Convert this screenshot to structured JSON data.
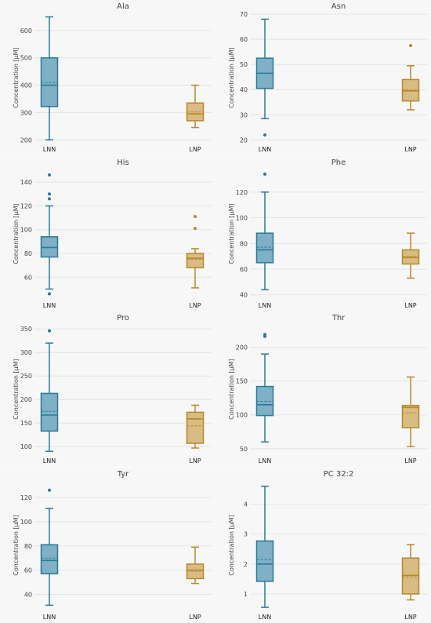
{
  "colors": {
    "LNN": "#2b7a97",
    "LNP": "#b8882c",
    "LNN_fill": "#7fb0c5",
    "LNP_fill": "#d9bb84"
  },
  "chart_data": [
    {
      "type": "box",
      "title": "Ala",
      "ylabel": "Concentration [µM]",
      "yticks": [
        200,
        300,
        400,
        500,
        600
      ],
      "ylim": [
        195,
        660
      ],
      "categories": [
        "LNN",
        "LNP"
      ],
      "boxes": [
        {
          "name": "LNN",
          "min": 200,
          "q1": 322,
          "median": 400,
          "mean": 410,
          "q3": 500,
          "max": 650,
          "outliers": []
        },
        {
          "name": "LNP",
          "min": 245,
          "q1": 270,
          "median": 295,
          "mean": 302,
          "q3": 335,
          "max": 400,
          "outliers": []
        }
      ]
    },
    {
      "type": "box",
      "title": "Asn",
      "ylabel": "Concentration [µM]",
      "yticks": [
        20,
        30,
        40,
        50,
        60,
        70
      ],
      "ylim": [
        19.5,
        70
      ],
      "categories": [
        "LNN",
        "LNP"
      ],
      "boxes": [
        {
          "name": "LNN",
          "min": 28.5,
          "q1": 40.5,
          "median": 46.5,
          "mean": 46.5,
          "q3": 52.5,
          "max": 68,
          "outliers": [
            22
          ]
        },
        {
          "name": "LNP",
          "min": 32,
          "q1": 35.5,
          "median": 39.5,
          "mean": 40,
          "q3": 44,
          "max": 49.5,
          "outliers": [
            57.5
          ]
        }
      ]
    },
    {
      "type": "box",
      "title": "His",
      "ylabel": "Concentration [µM]",
      "yticks": [
        60,
        80,
        100,
        120,
        140
      ],
      "ylim": [
        43,
        150
      ],
      "categories": [
        "LNN",
        "LNP"
      ],
      "boxes": [
        {
          "name": "LNN",
          "min": 50,
          "q1": 77,
          "median": 85,
          "mean": 85,
          "q3": 94,
          "max": 120,
          "outliers": [
            46,
            126,
            130,
            146
          ]
        },
        {
          "name": "LNP",
          "min": 51,
          "q1": 68,
          "median": 76,
          "mean": 75,
          "q3": 80,
          "max": 84,
          "outliers": [
            101,
            111
          ]
        }
      ]
    },
    {
      "type": "box",
      "title": "Phe",
      "ylabel": "Concentration [µM]",
      "yticks": [
        40,
        60,
        80,
        100,
        120
      ],
      "ylim": [
        38,
        137
      ],
      "categories": [
        "LNN",
        "LNP"
      ],
      "boxes": [
        {
          "name": "LNN",
          "min": 44,
          "q1": 65,
          "median": 75,
          "mean": 77,
          "q3": 88,
          "max": 120,
          "outliers": [
            134
          ]
        },
        {
          "name": "LNP",
          "min": 53,
          "q1": 64,
          "median": 69,
          "mean": 70,
          "q3": 75,
          "max": 88,
          "outliers": []
        }
      ]
    },
    {
      "type": "box",
      "title": "Pro",
      "ylabel": "Concentration [µM]",
      "yticks": [
        100,
        150,
        200,
        250,
        300,
        350
      ],
      "ylim": [
        87,
        357
      ],
      "categories": [
        "LNN",
        "LNP"
      ],
      "boxes": [
        {
          "name": "LNN",
          "min": 90,
          "q1": 133,
          "median": 167,
          "mean": 175,
          "q3": 213,
          "max": 320,
          "outliers": [
            346
          ]
        },
        {
          "name": "LNP",
          "min": 97,
          "q1": 107,
          "median": 159,
          "mean": 144,
          "q3": 173,
          "max": 188,
          "outliers": []
        }
      ]
    },
    {
      "type": "box",
      "title": "Thr",
      "ylabel": "Concentration [µM]",
      "yticks": [
        50,
        100,
        150,
        200
      ],
      "ylim": [
        44,
        232
      ],
      "categories": [
        "LNN",
        "LNP"
      ],
      "boxes": [
        {
          "name": "LNN",
          "min": 60,
          "q1": 99,
          "median": 115,
          "mean": 120,
          "q3": 142,
          "max": 190,
          "outliers": [
            216,
            219
          ]
        },
        {
          "name": "LNP",
          "min": 53,
          "q1": 81,
          "median": 111,
          "mean": 103,
          "q3": 114,
          "max": 156,
          "outliers": []
        }
      ]
    },
    {
      "type": "box",
      "title": "Tyr",
      "ylabel": "Concentration [µM]",
      "yticks": [
        40,
        60,
        80,
        100,
        120
      ],
      "ylim": [
        28,
        133
      ],
      "categories": [
        "LNN",
        "LNP"
      ],
      "boxes": [
        {
          "name": "LNN",
          "min": 31,
          "q1": 57,
          "median": 68,
          "mean": 70,
          "q3": 81,
          "max": 111,
          "outliers": [
            126
          ]
        },
        {
          "name": "LNP",
          "min": 49,
          "q1": 53,
          "median": 60,
          "mean": 59,
          "q3": 65,
          "max": 79,
          "outliers": []
        }
      ]
    },
    {
      "type": "box",
      "title": "PC 32:2",
      "ylabel": "Concentration [µM]",
      "yticks": [
        1,
        2,
        3,
        4
      ],
      "ylim": [
        0.5,
        4.75
      ],
      "categories": [
        "LNN",
        "LNP"
      ],
      "boxes": [
        {
          "name": "LNN",
          "min": 0.55,
          "q1": 1.42,
          "median": 2.0,
          "mean": 2.15,
          "q3": 2.77,
          "max": 4.6,
          "outliers": []
        },
        {
          "name": "LNP",
          "min": 0.8,
          "q1": 1.0,
          "median": 1.62,
          "mean": 1.57,
          "q3": 2.2,
          "max": 2.65,
          "outliers": []
        }
      ]
    }
  ]
}
